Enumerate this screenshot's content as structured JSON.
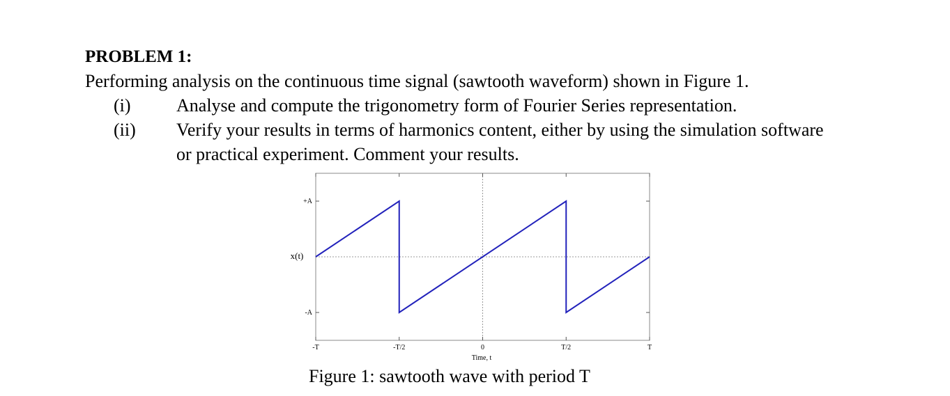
{
  "heading": "PROBLEM 1:",
  "intro": "Performing analysis on the continuous time signal (sawtooth waveform) shown in Figure 1.",
  "items": [
    {
      "label": "(i)",
      "text": "Analyse and compute the trigonometry form of Fourier Series representation."
    },
    {
      "label": "(ii)",
      "text": "Verify your results in terms of harmonics content, either by using the simulation software or practical experiment. Comment your results."
    }
  ],
  "chart_data": {
    "type": "line",
    "xlabel": "Time, t",
    "ylabel": "x(t)",
    "x": [
      -1,
      -0.5,
      -0.5,
      0.5,
      0.5,
      1
    ],
    "series": [
      {
        "color": "#2222bb",
        "values": [
          0,
          1,
          -1,
          1,
          -1,
          0
        ]
      }
    ],
    "xlim": [
      -1,
      1
    ],
    "xticks": [
      {
        "value": -1,
        "label": "-T"
      },
      {
        "value": -0.5,
        "label": "-T/2"
      },
      0,
      {
        "value": 0.5,
        "label": "T/2"
      },
      {
        "value": 1,
        "label": "T"
      }
    ],
    "ylim": [
      -1.5,
      1.5
    ],
    "yticks": [
      {
        "value": 1,
        "label": "+A"
      },
      {
        "value": -1,
        "label": "-A"
      }
    ],
    "zero_lines": true
  },
  "caption": "Figure 1: sawtooth wave with period T"
}
